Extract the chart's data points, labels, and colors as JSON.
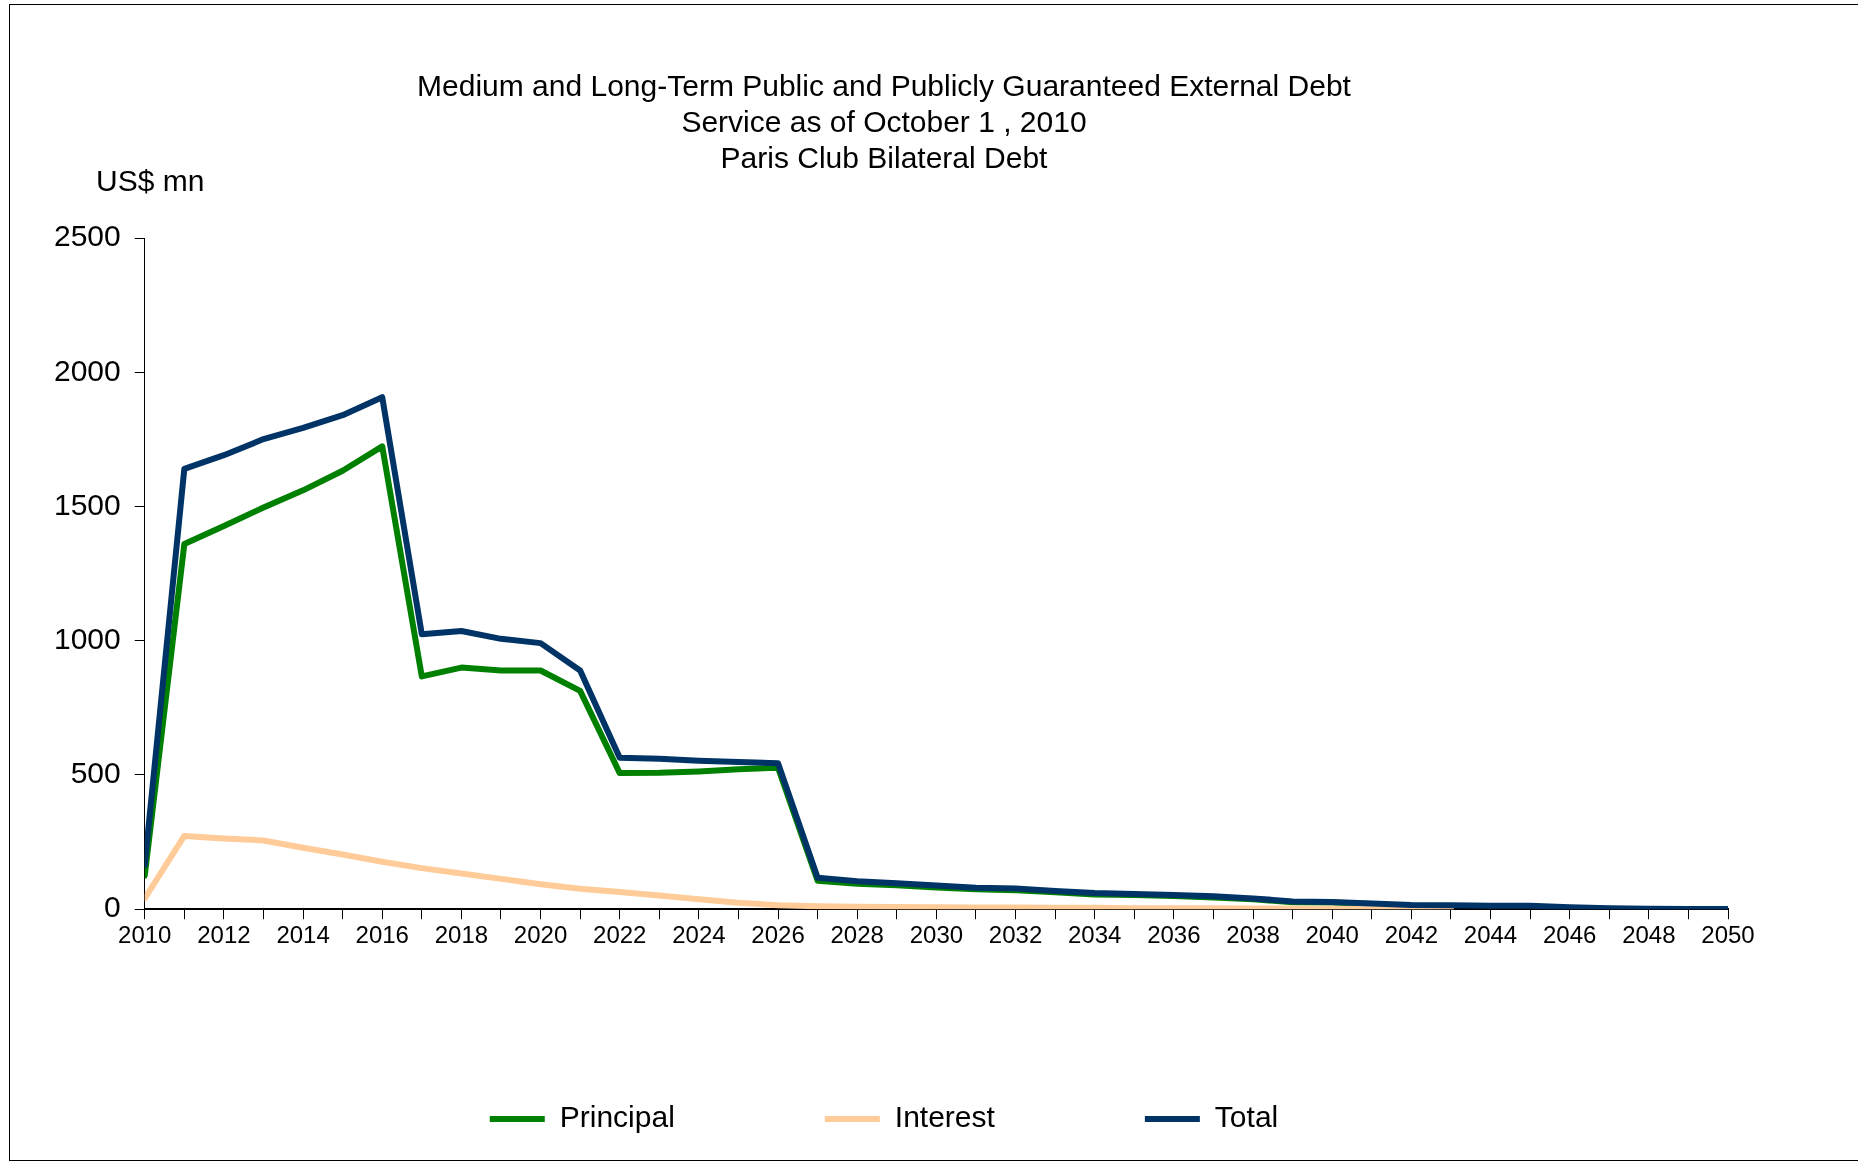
{
  "chart_data": {
    "type": "line",
    "title": "Medium and Long-Term Public and Publicly Guaranteed External Debt\nService as of October 1 , 2010\nParis Club Bilateral Debt",
    "ylabel": "US$ mn",
    "x": [
      2010,
      2011,
      2012,
      2013,
      2014,
      2015,
      2016,
      2017,
      2018,
      2019,
      2020,
      2021,
      2022,
      2023,
      2024,
      2025,
      2026,
      2027,
      2028,
      2029,
      2030,
      2031,
      2032,
      2033,
      2034,
      2035,
      2036,
      2037,
      2038,
      2039,
      2040,
      2041,
      2042,
      2043,
      2044,
      2045,
      2046,
      2047,
      2048,
      2049,
      2050
    ],
    "series": [
      {
        "name": "Principal",
        "color": "#008000",
        "values": [
          125,
          1360,
          1427,
          1496,
          1560,
          1633,
          1724,
          867,
          900,
          889,
          889,
          813,
          507,
          508,
          513,
          521,
          527,
          106,
          95,
          89,
          81,
          74,
          71,
          63,
          55,
          53,
          49,
          44,
          37,
          26,
          25,
          19,
          null,
          null,
          null,
          null,
          null,
          null,
          null,
          null,
          null
        ]
      },
      {
        "name": "Interest",
        "color": "#ffcc99",
        "values": [
          40,
          273,
          263,
          256,
          229,
          204,
          177,
          153,
          133,
          113,
          93,
          76,
          64,
          51,
          37,
          24,
          15,
          11,
          9,
          8,
          7,
          6,
          6,
          5,
          5,
          4,
          4,
          4,
          3,
          3,
          2,
          2,
          1,
          1,
          null,
          null,
          null,
          null,
          null,
          null,
          null
        ]
      },
      {
        "name": "Total",
        "color": "#003366",
        "values": [
          165,
          1640,
          1691,
          1751,
          1793,
          1840,
          1907,
          1024,
          1036,
          1007,
          991,
          889,
          564,
          560,
          553,
          548,
          544,
          117,
          104,
          97,
          88,
          80,
          77,
          68,
          60,
          57,
          53,
          48,
          40,
          29,
          27,
          21,
          16,
          15,
          13,
          13,
          7,
          4,
          2,
          1,
          1
        ]
      }
    ],
    "xlim": [
      2010,
      2050
    ],
    "xticks": [
      2010,
      {
        "value": 2011,
        "label": null
      },
      2012,
      {
        "value": 2013,
        "label": null
      },
      2014,
      {
        "value": 2015,
        "label": null
      },
      2016,
      {
        "value": 2017,
        "label": null
      },
      2018,
      {
        "value": 2019,
        "label": null
      },
      2020,
      {
        "value": 2021,
        "label": null
      },
      2022,
      {
        "value": 2023,
        "label": null
      },
      2024,
      {
        "value": 2025,
        "label": null
      },
      2026,
      {
        "value": 2027,
        "label": null
      },
      2028,
      {
        "value": 2029,
        "label": null
      },
      2030,
      {
        "value": 2031,
        "label": null
      },
      2032,
      {
        "value": 2033,
        "label": null
      },
      2034,
      {
        "value": 2035,
        "label": null
      },
      2036,
      {
        "value": 2037,
        "label": null
      },
      2038,
      {
        "value": 2039,
        "label": null
      },
      2040,
      {
        "value": 2041,
        "label": null
      },
      2042,
      {
        "value": 2043,
        "label": null
      },
      2044,
      {
        "value": 2045,
        "label": null
      },
      2046,
      {
        "value": 2047,
        "label": null
      },
      2048,
      {
        "value": 2049,
        "label": null
      },
      2050
    ],
    "ylim": [
      0,
      2500
    ],
    "yticks": [
      0,
      500,
      1000,
      1500,
      2000,
      2500
    ],
    "grid": false,
    "legend": "bottom",
    "marker": "none",
    "line_style": "solid"
  }
}
